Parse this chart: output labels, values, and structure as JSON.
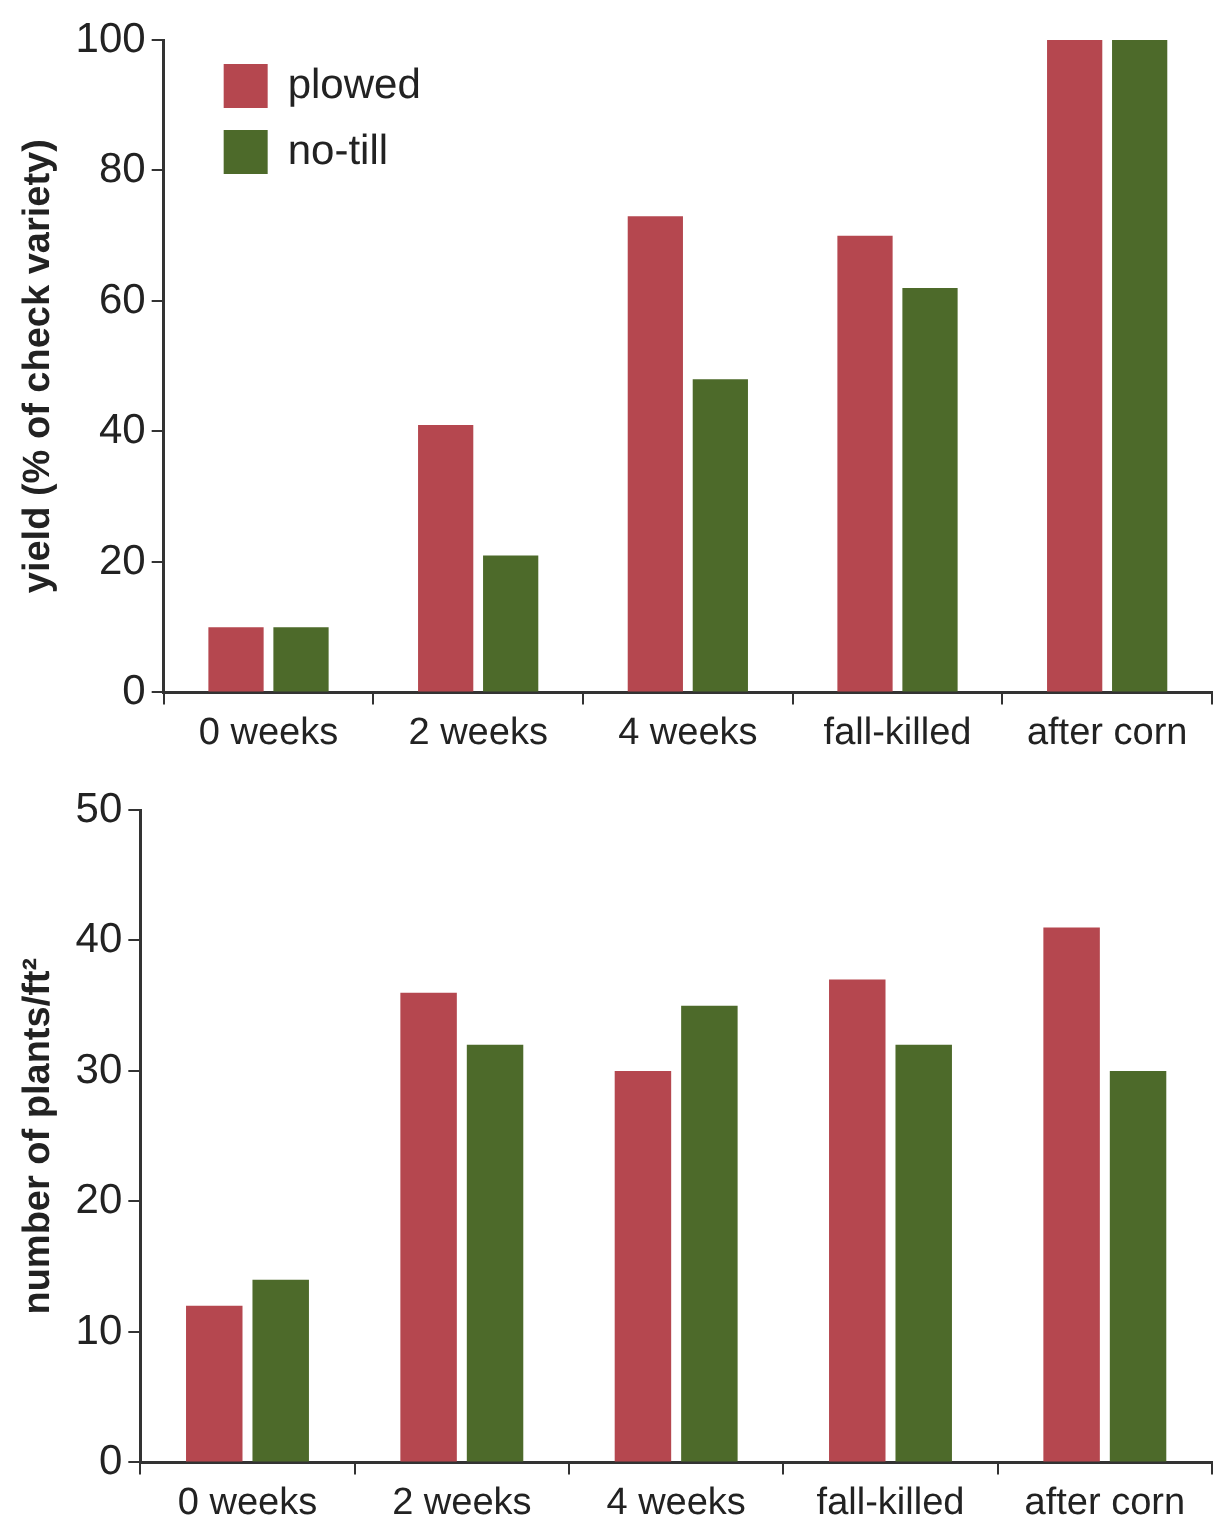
{
  "chart_data": [
    {
      "type": "bar",
      "ylabel": "yield (% of check variety)",
      "categories": [
        "0 weeks",
        "2 weeks",
        "4 weeks",
        "fall-killed",
        "after corn"
      ],
      "series": [
        {
          "name": "plowed",
          "color": "#b5474f",
          "values": [
            10,
            41,
            73,
            70,
            100
          ]
        },
        {
          "name": "no-till",
          "color": "#4d6a2a",
          "values": [
            10,
            21,
            48,
            62,
            100
          ]
        }
      ],
      "ylim": [
        0,
        100
      ],
      "yticks": [
        0,
        20,
        40,
        60,
        80,
        100
      ],
      "grid": false,
      "legend": "top left"
    },
    {
      "type": "bar",
      "ylabel": "number of plants/ft²",
      "categories": [
        "0 weeks",
        "2 weeks",
        "4 weeks",
        "fall-killed",
        "after corn"
      ],
      "series": [
        {
          "color": "#b5474f",
          "values": [
            12,
            36,
            30,
            37,
            41
          ]
        },
        {
          "color": "#4d6a2a",
          "values": [
            14,
            32,
            35,
            32,
            30
          ]
        }
      ],
      "ylim": [
        0,
        50
      ],
      "yticks": [
        0,
        10,
        20,
        30,
        40,
        50
      ],
      "grid": false
    }
  ]
}
